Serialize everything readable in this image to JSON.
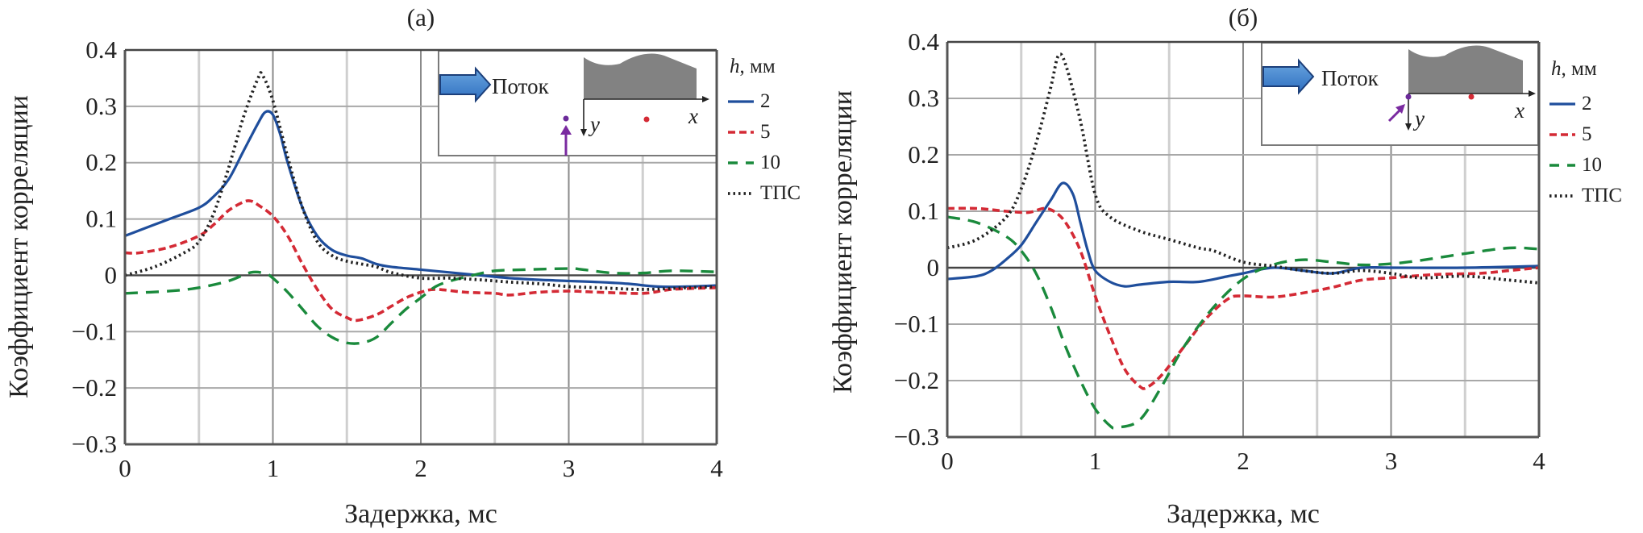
{
  "chart_data": [
    {
      "type": "line",
      "title": "(a)",
      "xlabel": "Задержка, мс",
      "ylabel": "Коэффициент корреляции",
      "xlim": [
        0,
        4
      ],
      "ylim": [
        -0.3,
        0.4
      ],
      "xticks": [
        0,
        1,
        2,
        3,
        4
      ],
      "yticks": [
        0.4,
        0.3,
        0.2,
        0.1,
        0,
        -0.1,
        -0.2,
        -0.3
      ],
      "ytick_labels": [
        "0.4",
        "0.3",
        "0.2",
        "0.1",
        "0",
        "−0.1",
        "−0.2",
        "−0.3"
      ],
      "grid": true,
      "legend_title": "h, мм",
      "legend_title_italic": "h",
      "legend_title_rest": ", мм",
      "legend_position": "right",
      "inset": {
        "flow_label": "Поток",
        "x_axis": "x",
        "y_axis": "y",
        "probe_arrow": "up"
      },
      "series": [
        {
          "name": "2",
          "color": "#1f4e9c",
          "style": "solid",
          "x": [
            0,
            0.1,
            0.2,
            0.3,
            0.5,
            0.6,
            0.7,
            0.8,
            0.9,
            0.95,
            1.0,
            1.05,
            1.1,
            1.2,
            1.3,
            1.4,
            1.5,
            1.6,
            1.7,
            1.8,
            2.0,
            2.2,
            2.4,
            2.6,
            2.8,
            3.0,
            3.2,
            3.4,
            3.6,
            3.8,
            4.0
          ],
          "y": [
            0.07,
            0.08,
            0.09,
            0.1,
            0.12,
            0.14,
            0.17,
            0.22,
            0.27,
            0.29,
            0.285,
            0.25,
            0.2,
            0.12,
            0.07,
            0.045,
            0.035,
            0.03,
            0.02,
            0.015,
            0.01,
            0.005,
            0.0,
            -0.005,
            -0.008,
            -0.01,
            -0.012,
            -0.015,
            -0.02,
            -0.02,
            -0.018
          ]
        },
        {
          "name": "5",
          "color": "#d42a35",
          "style": "dashed",
          "x": [
            0,
            0.1,
            0.3,
            0.5,
            0.6,
            0.7,
            0.8,
            0.85,
            0.9,
            1.0,
            1.1,
            1.2,
            1.3,
            1.4,
            1.5,
            1.57,
            1.7,
            1.8,
            1.9,
            2.0,
            2.1,
            2.3,
            2.5,
            2.6,
            2.8,
            3.0,
            3.2,
            3.5,
            3.7,
            4.0
          ],
          "y": [
            0.04,
            0.04,
            0.05,
            0.07,
            0.09,
            0.115,
            0.13,
            0.132,
            0.125,
            0.105,
            0.07,
            0.02,
            -0.025,
            -0.06,
            -0.075,
            -0.08,
            -0.07,
            -0.055,
            -0.04,
            -0.03,
            -0.025,
            -0.03,
            -0.032,
            -0.035,
            -0.03,
            -0.028,
            -0.03,
            -0.032,
            -0.025,
            -0.022
          ]
        },
        {
          "name": "10",
          "color": "#1a8a3c",
          "style": "longdash",
          "x": [
            0,
            0.3,
            0.5,
            0.7,
            0.85,
            0.95,
            1.0,
            1.1,
            1.2,
            1.3,
            1.4,
            1.5,
            1.6,
            1.7,
            1.8,
            1.9,
            2.0,
            2.1,
            2.2,
            2.35,
            2.5,
            2.7,
            3.0,
            3.1,
            3.3,
            3.5,
            3.7,
            4.0
          ],
          "y": [
            -0.032,
            -0.028,
            -0.022,
            -0.01,
            0.005,
            0.003,
            -0.005,
            -0.03,
            -0.06,
            -0.09,
            -0.11,
            -0.12,
            -0.12,
            -0.11,
            -0.085,
            -0.06,
            -0.04,
            -0.02,
            -0.01,
            0.0,
            0.008,
            0.01,
            0.012,
            0.01,
            0.004,
            0.004,
            0.008,
            0.006
          ]
        },
        {
          "name": "ТПС",
          "color": "#222222",
          "style": "dotted",
          "x": [
            0,
            0.2,
            0.4,
            0.5,
            0.6,
            0.7,
            0.8,
            0.9,
            0.93,
            1.0,
            1.1,
            1.2,
            1.3,
            1.4,
            1.5,
            1.6,
            1.7,
            1.8,
            2.0,
            2.2,
            2.4,
            2.6,
            2.8,
            3.0,
            3.2,
            3.5,
            3.8,
            4.0
          ],
          "y": [
            0.0,
            0.015,
            0.04,
            0.06,
            0.11,
            0.19,
            0.28,
            0.35,
            0.355,
            0.31,
            0.21,
            0.12,
            0.06,
            0.035,
            0.025,
            0.02,
            0.015,
            0.005,
            -0.005,
            -0.005,
            -0.008,
            -0.012,
            -0.015,
            -0.02,
            -0.022,
            -0.025,
            -0.022,
            -0.02
          ]
        }
      ]
    },
    {
      "type": "line",
      "title": "(б)",
      "xlabel": "Задержка, мс",
      "ylabel": "Коэффициент корреляции",
      "xlim": [
        0,
        4
      ],
      "ylim": [
        -0.3,
        0.4
      ],
      "xticks": [
        0,
        1,
        2,
        3,
        4
      ],
      "yticks": [
        0.4,
        0.3,
        0.2,
        0.1,
        0,
        -0.1,
        -0.2,
        -0.3
      ],
      "ytick_labels": [
        "0.4",
        "0.3",
        "0.2",
        "0.1",
        "0",
        "−0.1",
        "−0.2",
        "−0.3"
      ],
      "grid": true,
      "legend_title": "h, мм",
      "legend_title_italic": "h",
      "legend_title_rest": ", мм",
      "legend_position": "right",
      "inset": {
        "flow_label": "Поток",
        "x_axis": "x",
        "y_axis": "y",
        "probe_arrow": "diagonal"
      },
      "series": [
        {
          "name": "2",
          "color": "#1f4e9c",
          "style": "solid",
          "x": [
            0,
            0.2,
            0.3,
            0.4,
            0.5,
            0.6,
            0.7,
            0.78,
            0.85,
            0.9,
            0.95,
            1.0,
            1.1,
            1.2,
            1.3,
            1.5,
            1.7,
            1.9,
            2.0,
            2.2,
            2.4,
            2.6,
            2.8,
            3.0,
            3.5,
            4.0
          ],
          "y": [
            -0.02,
            -0.015,
            -0.005,
            0.015,
            0.04,
            0.08,
            0.12,
            0.15,
            0.13,
            0.08,
            0.03,
            -0.005,
            -0.025,
            -0.033,
            -0.03,
            -0.025,
            -0.025,
            -0.015,
            -0.01,
            0.0,
            -0.005,
            -0.01,
            0.0,
            0.0,
            0.0,
            0.003
          ]
        },
        {
          "name": "5",
          "color": "#d42a35",
          "style": "dashed",
          "x": [
            0,
            0.2,
            0.4,
            0.55,
            0.65,
            0.72,
            0.8,
            0.9,
            1.0,
            1.1,
            1.2,
            1.3,
            1.35,
            1.45,
            1.6,
            1.75,
            1.9,
            2.0,
            2.2,
            2.4,
            2.6,
            2.8,
            3.0,
            3.3,
            3.6,
            3.8,
            4.0
          ],
          "y": [
            0.105,
            0.105,
            0.1,
            0.098,
            0.105,
            0.1,
            0.08,
            0.03,
            -0.05,
            -0.12,
            -0.18,
            -0.21,
            -0.212,
            -0.19,
            -0.14,
            -0.09,
            -0.055,
            -0.05,
            -0.052,
            -0.045,
            -0.035,
            -0.022,
            -0.018,
            -0.012,
            -0.01,
            -0.005,
            0.0
          ]
        },
        {
          "name": "10",
          "color": "#1a8a3c",
          "style": "longdash",
          "x": [
            0,
            0.2,
            0.4,
            0.5,
            0.6,
            0.7,
            0.8,
            0.9,
            1.0,
            1.1,
            1.15,
            1.3,
            1.45,
            1.6,
            1.8,
            2.0,
            2.2,
            2.4,
            2.6,
            2.8,
            3.0,
            3.2,
            3.5,
            3.8,
            4.0
          ],
          "y": [
            0.09,
            0.08,
            0.055,
            0.03,
            -0.01,
            -0.07,
            -0.14,
            -0.2,
            -0.25,
            -0.28,
            -0.283,
            -0.27,
            -0.21,
            -0.14,
            -0.07,
            -0.02,
            0.005,
            0.014,
            0.01,
            0.005,
            0.007,
            0.013,
            0.025,
            0.035,
            0.033
          ]
        },
        {
          "name": "ТПС",
          "color": "#222222",
          "style": "dotted",
          "x": [
            0,
            0.2,
            0.4,
            0.5,
            0.6,
            0.7,
            0.75,
            0.8,
            0.9,
            1.0,
            1.1,
            1.3,
            1.5,
            1.7,
            1.8,
            2.0,
            2.2,
            2.4,
            2.6,
            2.8,
            3.0,
            3.2,
            3.5,
            3.8,
            4.0
          ],
          "y": [
            0.035,
            0.05,
            0.09,
            0.14,
            0.22,
            0.32,
            0.375,
            0.36,
            0.26,
            0.13,
            0.09,
            0.065,
            0.05,
            0.035,
            0.03,
            0.01,
            0.003,
            -0.005,
            -0.01,
            -0.005,
            -0.01,
            -0.018,
            -0.015,
            -0.022,
            -0.027
          ]
        }
      ]
    }
  ]
}
